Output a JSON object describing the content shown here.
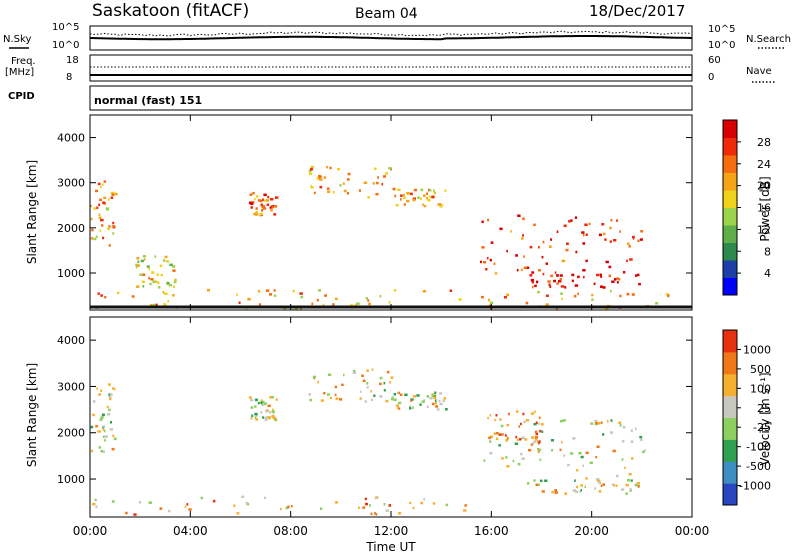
{
  "header": {
    "station": "Saskatoon (fitACF)",
    "beam": "Beam 04",
    "date": "18/Dec/2017"
  },
  "params": {
    "nsky_label": "N.Sky",
    "nsearch_label": "N.Search",
    "freq_label_1": "Freq.",
    "freq_label_2": "[MHz]",
    "nave_label": "Nave",
    "cpid_label": "CPID",
    "cpid_value": "normal (fast) 151",
    "nsky_ticks": [
      "10^5",
      "10^0"
    ],
    "nsearch_ticks": [
      "10^5",
      "10^0"
    ],
    "freq_ticks": [
      "18",
      "8"
    ],
    "nave_ticks": [
      "60",
      "0"
    ]
  },
  "chart_data": [
    {
      "type": "heatmap",
      "panel": "power",
      "ylabel": "Slant Range [km]",
      "ylim": [
        180,
        4500
      ],
      "yticks": [
        "4000",
        "3000",
        "2000",
        "1000"
      ],
      "colorbar_label": "Power [dB]",
      "colorbar_ticks": [
        "28",
        "24",
        "20",
        "16",
        "12",
        "8",
        "4"
      ],
      "colorbar_colors": [
        "#0000ff",
        "#1c3fa8",
        "#2d8a4c",
        "#5fae4a",
        "#9bd34b",
        "#f1d21a",
        "#f5a415",
        "#f56d0f",
        "#ef2a0a",
        "#d80000"
      ],
      "echo_regions": [
        {
          "t": [
            0.0,
            1.0
          ],
          "r": [
            1600,
            3100
          ],
          "level": 6
        },
        {
          "t": [
            6.3,
            7.4
          ],
          "r": [
            2300,
            2800
          ],
          "level": 7
        },
        {
          "t": [
            8.7,
            12.0
          ],
          "r": [
            2700,
            3400
          ],
          "level": 6
        },
        {
          "t": [
            12.0,
            14.2
          ],
          "r": [
            2500,
            2900
          ],
          "level": 6
        },
        {
          "t": [
            15.3,
            22.2
          ],
          "r": [
            1000,
            2300
          ],
          "level": 8
        },
        {
          "t": [
            17.2,
            22.0
          ],
          "r": [
            700,
            1000
          ],
          "level": 9
        },
        {
          "t": [
            1.8,
            3.4
          ],
          "r": [
            700,
            1400
          ],
          "level": 5
        },
        {
          "t": [
            0.0,
            23.8
          ],
          "r": [
            200,
            650
          ],
          "level": 6
        }
      ]
    },
    {
      "type": "heatmap",
      "panel": "velocity",
      "ylabel": "Slant Range [km]",
      "ylim": [
        180,
        4500
      ],
      "yticks": [
        "4000",
        "3000",
        "2000",
        "1000"
      ],
      "colorbar_label": "Velocity [m s⁻¹]",
      "colorbar_ticks": [
        "1000",
        "500",
        "100",
        "25",
        "-25",
        "-100",
        "-500",
        "-1000"
      ],
      "colorbar_colors": [
        "#2846c0",
        "#3c8fc0",
        "#2fa050",
        "#8cd060",
        "#c8c8c0",
        "#f5b030",
        "#f07818",
        "#e63010"
      ],
      "echo_regions": [
        {
          "t": [
            0.0,
            1.0
          ],
          "r": [
            1600,
            3100
          ],
          "level": 4
        },
        {
          "t": [
            6.3,
            7.4
          ],
          "r": [
            2300,
            2800
          ],
          "level": 4
        },
        {
          "t": [
            8.7,
            12.0
          ],
          "r": [
            2700,
            3400
          ],
          "level": 4
        },
        {
          "t": [
            12.0,
            14.2
          ],
          "r": [
            2500,
            2900
          ],
          "level": 4
        },
        {
          "t": [
            15.3,
            22.2
          ],
          "r": [
            1000,
            2300
          ],
          "level": 4
        },
        {
          "t": [
            17.2,
            22.0
          ],
          "r": [
            700,
            1000
          ],
          "level": 4
        },
        {
          "t": [
            0.0,
            15.0
          ],
          "r": [
            250,
            650
          ],
          "level": 5
        },
        {
          "t": [
            15.8,
            18.0
          ],
          "r": [
            1800,
            2500
          ],
          "level": 6
        }
      ]
    }
  ],
  "xaxis": {
    "xlabel": "Time UT",
    "xticks": [
      "00:00",
      "04:00",
      "08:00",
      "12:00",
      "16:00",
      "20:00",
      "00:00"
    ],
    "xlim": [
      0,
      24
    ]
  }
}
